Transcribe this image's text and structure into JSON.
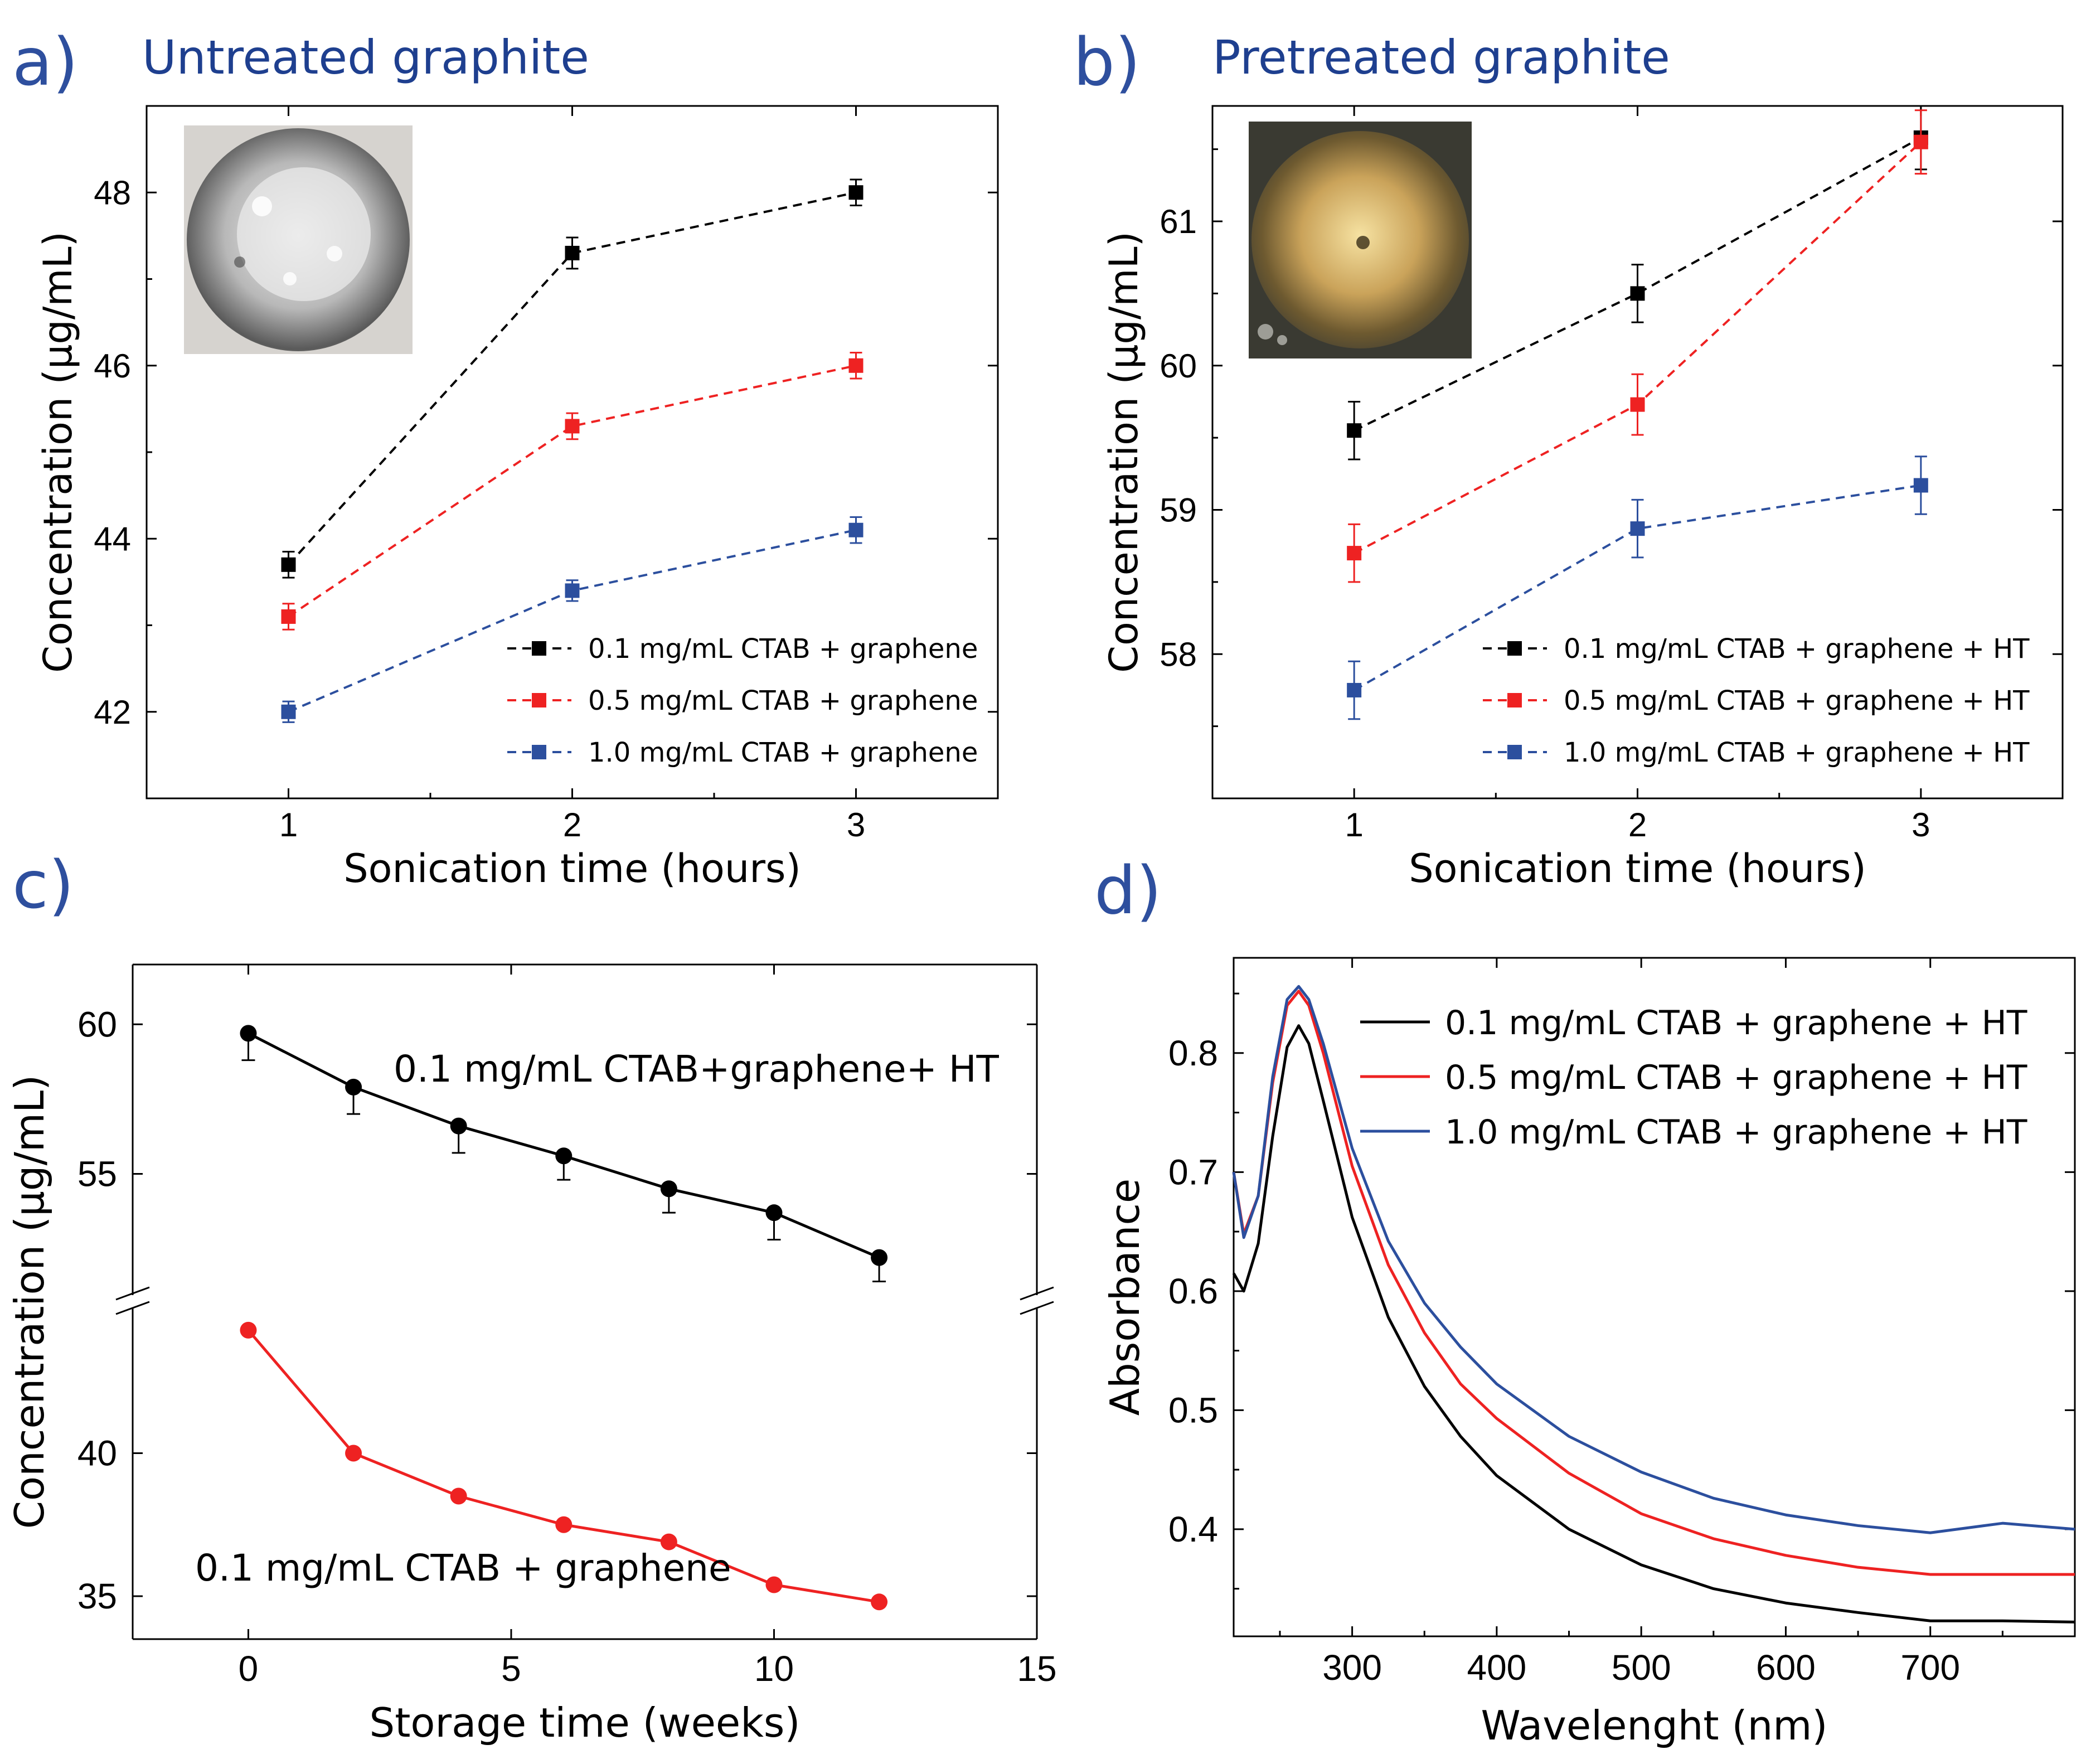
{
  "figure": {
    "panels": [
      {
        "letter": "a)",
        "title": "Untreated graphite",
        "photo": "untreated graphite sample photo"
      },
      {
        "letter": "b)",
        "title": "Pretreated graphite",
        "photo": "pretreated graphite sample photo"
      },
      {
        "letter": "c)",
        "title": ""
      },
      {
        "letter": "d)",
        "title": ""
      }
    ]
  },
  "chart_data": [
    {
      "type": "line",
      "panel": "a)",
      "title": "Untreated graphite",
      "xlabel": "Sonication time (hours)",
      "ylabel": "Concentration (μg/mL)",
      "xlim": [
        0.5,
        3.5
      ],
      "ylim": [
        41,
        49
      ],
      "xticks": [
        "1",
        "2",
        "3"
      ],
      "yticks": [
        "42",
        "44",
        "46",
        "48"
      ],
      "series": [
        {
          "name": "0.1 mg/mL CTAB + graphene",
          "color": "#000000",
          "x": [
            1,
            2,
            3
          ],
          "values": [
            43.7,
            47.3,
            48.0
          ],
          "err": [
            0.15,
            0.18,
            0.15
          ]
        },
        {
          "name": "0.5 mg/mL CTAB + graphene",
          "color": "#ee2222",
          "x": [
            1,
            2,
            3
          ],
          "values": [
            43.1,
            45.3,
            46.0
          ],
          "err": [
            0.15,
            0.15,
            0.15
          ]
        },
        {
          "name": "1.0 mg/mL CTAB + graphene",
          "color": "#2c4f9e",
          "x": [
            1,
            2,
            3
          ],
          "values": [
            42.0,
            43.4,
            44.1
          ],
          "err": [
            0.12,
            0.12,
            0.15
          ]
        }
      ]
    },
    {
      "type": "line",
      "panel": "b)",
      "title": "Pretreated graphite",
      "xlabel": "Sonication time (hours)",
      "ylabel": "Concentration (μg/mL)",
      "xlim": [
        0.5,
        3.5
      ],
      "ylim": [
        57,
        61.8
      ],
      "xticks": [
        "1",
        "2",
        "3"
      ],
      "yticks": [
        "58",
        "59",
        "60",
        "61"
      ],
      "series": [
        {
          "name": "0.1 mg/mL CTAB + graphene + HT",
          "color": "#000000",
          "x": [
            1,
            2,
            3
          ],
          "values": [
            59.55,
            60.5,
            61.58
          ],
          "err": [
            0.2,
            0.2,
            0.22
          ]
        },
        {
          "name": "0.5 mg/mL CTAB + graphene + HT",
          "color": "#ee2222",
          "x": [
            1,
            2,
            3
          ],
          "values": [
            58.7,
            59.73,
            61.55
          ],
          "err": [
            0.2,
            0.21,
            0.22
          ]
        },
        {
          "name": "1.0 mg/mL CTAB + graphene + HT",
          "color": "#2c4f9e",
          "x": [
            1,
            2,
            3
          ],
          "values": [
            57.75,
            58.87,
            59.17
          ],
          "err": [
            0.2,
            0.2,
            0.2
          ]
        }
      ]
    },
    {
      "type": "line",
      "panel": "c)",
      "xlabel": "Storage time (weeks)",
      "ylabel": "Concentration (μg/mL)",
      "xlim": [
        -2.2,
        15
      ],
      "broken_yaxis": true,
      "ylim_upper": [
        51,
        62
      ],
      "ylim_lower": [
        33.5,
        45
      ],
      "xticks": [
        "0",
        "5",
        "10",
        "15"
      ],
      "yticks_upper": [
        "55",
        "60"
      ],
      "yticks_lower": [
        "35",
        "40"
      ],
      "series": [
        {
          "name": "0.1 mg/mL CTAB+graphene+ HT",
          "color": "#000000",
          "x": [
            0,
            2,
            4,
            6,
            8,
            10,
            12
          ],
          "values": [
            59.7,
            57.9,
            56.6,
            55.6,
            54.5,
            53.7,
            52.2
          ],
          "err": [
            0.9,
            0.9,
            0.9,
            0.8,
            0.8,
            0.9,
            0.8
          ]
        },
        {
          "name": "0.1 mg/mL CTAB + graphene",
          "color": "#ee2222",
          "x": [
            0,
            2,
            4,
            6,
            8,
            10,
            12
          ],
          "values": [
            44.3,
            40.0,
            38.5,
            37.5,
            36.9,
            35.4,
            34.8
          ]
        }
      ]
    },
    {
      "type": "line",
      "panel": "d)",
      "xlabel": "Wavelenght (nm)",
      "ylabel": "Absorbance",
      "xlim": [
        218,
        800
      ],
      "ylim": [
        0.31,
        0.88
      ],
      "xticks": [
        "300",
        "400",
        "500",
        "600",
        "700"
      ],
      "yticks": [
        "0.4",
        "0.5",
        "0.6",
        "0.7",
        "0.8"
      ],
      "series": [
        {
          "name": "0.1 mg/mL CTAB + graphene + HT",
          "color": "#000000",
          "x": [
            218,
            225,
            235,
            245,
            255,
            263,
            270,
            280,
            300,
            325,
            350,
            375,
            400,
            450,
            500,
            550,
            600,
            650,
            700,
            750,
            800
          ],
          "values": [
            0.615,
            0.6,
            0.64,
            0.73,
            0.805,
            0.823,
            0.808,
            0.76,
            0.662,
            0.578,
            0.52,
            0.478,
            0.445,
            0.4,
            0.37,
            0.35,
            0.338,
            0.33,
            0.323,
            0.323,
            0.322
          ]
        },
        {
          "name": "0.5 mg/mL CTAB + graphene + HT",
          "color": "#ee2222",
          "x": [
            218,
            225,
            235,
            245,
            255,
            263,
            270,
            280,
            300,
            325,
            350,
            375,
            400,
            450,
            500,
            550,
            600,
            650,
            700,
            750,
            800
          ],
          "values": [
            0.7,
            0.648,
            0.68,
            0.775,
            0.84,
            0.852,
            0.84,
            0.8,
            0.705,
            0.622,
            0.565,
            0.522,
            0.493,
            0.447,
            0.413,
            0.392,
            0.378,
            0.368,
            0.362,
            0.362,
            0.362
          ]
        },
        {
          "name": "1.0 mg/mL CTAB + graphene + HT",
          "color": "#2c4f9e",
          "x": [
            218,
            225,
            235,
            245,
            255,
            263,
            270,
            280,
            300,
            325,
            350,
            375,
            400,
            450,
            500,
            550,
            600,
            650,
            700,
            750,
            800
          ],
          "values": [
            0.7,
            0.645,
            0.68,
            0.78,
            0.845,
            0.856,
            0.845,
            0.808,
            0.72,
            0.642,
            0.59,
            0.553,
            0.522,
            0.478,
            0.448,
            0.426,
            0.412,
            0.403,
            0.397,
            0.405,
            0.4
          ]
        }
      ]
    }
  ]
}
